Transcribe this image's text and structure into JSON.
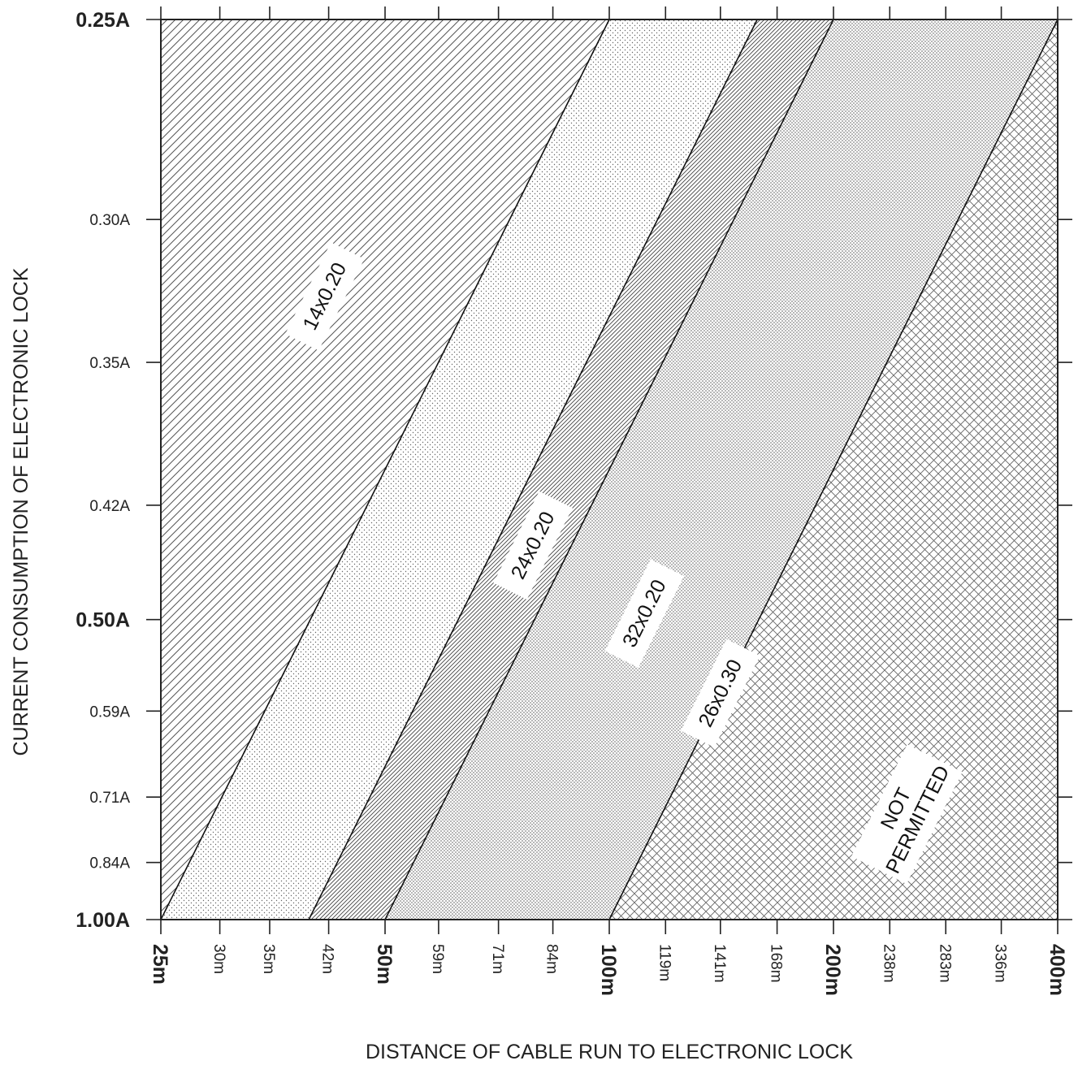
{
  "chart_data": {
    "type": "area",
    "title": "",
    "xlabel": "DISTANCE OF CABLE RUN TO ELECTRONIC LOCK",
    "ylabel": "CURRENT CONSUMPTION OF ELECTRONIC LOCK",
    "x_scale": "log",
    "y_scale": "reciprocal",
    "x_ticks": [
      {
        "value": 25,
        "label": "25m",
        "major": true
      },
      {
        "value": 30,
        "label": "30m",
        "major": false
      },
      {
        "value": 35,
        "label": "35m",
        "major": false
      },
      {
        "value": 42,
        "label": "42m",
        "major": false
      },
      {
        "value": 50,
        "label": "50m",
        "major": true
      },
      {
        "value": 59,
        "label": "59m",
        "major": false
      },
      {
        "value": 71,
        "label": "71m",
        "major": false
      },
      {
        "value": 84,
        "label": "84m",
        "major": false
      },
      {
        "value": 100,
        "label": "100m",
        "major": true
      },
      {
        "value": 119,
        "label": "119m",
        "major": false
      },
      {
        "value": 141,
        "label": "141m",
        "major": false
      },
      {
        "value": 168,
        "label": "168m",
        "major": false
      },
      {
        "value": 200,
        "label": "200m",
        "major": true
      },
      {
        "value": 238,
        "label": "238m",
        "major": false
      },
      {
        "value": 283,
        "label": "283m",
        "major": false
      },
      {
        "value": 336,
        "label": "336m",
        "major": false
      },
      {
        "value": 400,
        "label": "400m",
        "major": true
      }
    ],
    "y_ticks": [
      {
        "value": 0.25,
        "label": "0.25A",
        "major": true
      },
      {
        "value": 0.3,
        "label": "0.30A",
        "major": false
      },
      {
        "value": 0.35,
        "label": "0.35A",
        "major": false
      },
      {
        "value": 0.42,
        "label": "0.42A",
        "major": false
      },
      {
        "value": 0.5,
        "label": "0.50A",
        "major": true
      },
      {
        "value": 0.59,
        "label": "0.59A",
        "major": false
      },
      {
        "value": 0.71,
        "label": "0.71A",
        "major": false
      },
      {
        "value": 0.84,
        "label": "0.84A",
        "major": false
      },
      {
        "value": 1.0,
        "label": "1.00A",
        "major": true
      }
    ],
    "xlim": [
      25,
      400
    ],
    "ylim": [
      0.25,
      1.0
    ],
    "boundaries": [
      {
        "distance_at_1A": 25,
        "distance_at_0_25A": 100
      },
      {
        "distance_at_1A": 39.5,
        "distance_at_0_25A": 158
      },
      {
        "distance_at_1A": 50,
        "distance_at_0_25A": 200
      },
      {
        "distance_at_1A": 100,
        "distance_at_0_25A": 400
      }
    ],
    "regions": [
      {
        "label": "14x0.20",
        "pattern": "hatch-wide"
      },
      {
        "label": "24x0.20",
        "pattern": "dots-sparse"
      },
      {
        "label": "32x0.20",
        "pattern": "hatch-fine"
      },
      {
        "label": "26x0.30",
        "pattern": "dots-dense"
      },
      {
        "label": "NOT PERMITTED",
        "label_lines": [
          "NOT",
          "PERMITTED"
        ],
        "pattern": "crosshatch"
      }
    ],
    "grid": false,
    "legend": "none"
  }
}
